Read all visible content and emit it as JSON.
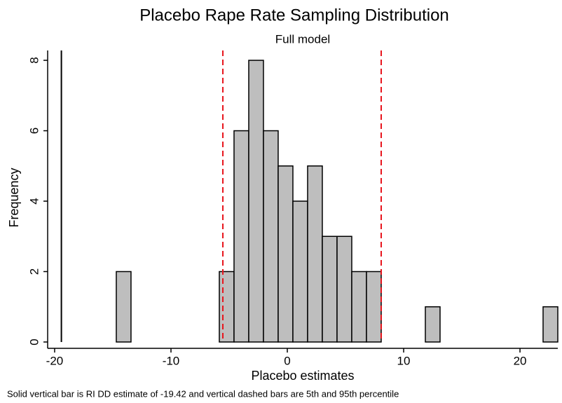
{
  "chart_data": {
    "type": "histogram",
    "title": "Placebo Rape Rate Sampling Distribution",
    "subtitle": "Full model",
    "xlabel": "Placebo estimates",
    "ylabel": "Frequency",
    "note": "Solid vertical bar is RI DD estimate of -19.42 and vertical dashed bars are 5th and 95th percentile",
    "bins": [
      -14.7,
      -13.435,
      -12.17,
      -10.905,
      -9.64,
      -8.375,
      -7.11,
      -5.845,
      -4.58,
      -3.315,
      -2.05,
      -0.785,
      0.48,
      1.745,
      3.01,
      4.275,
      5.54,
      6.805,
      8.07,
      9.335,
      10.6,
      11.865,
      13.13,
      14.395,
      15.66,
      16.925,
      18.19,
      19.455,
      20.72,
      21.985,
      23.25
    ],
    "values": [
      2,
      0,
      0,
      0,
      0,
      0,
      0,
      2,
      6,
      8,
      6,
      5,
      4,
      5,
      3,
      3,
      2,
      2,
      0,
      0,
      0,
      1,
      0,
      0,
      0,
      0,
      0,
      0,
      0,
      1
    ],
    "color": "#bebebe",
    "edgecolor": "#000000",
    "vlines": [
      {
        "value": -19.42,
        "color": "#000000",
        "style": "solid"
      },
      {
        "value": -5.54,
        "color": "#e8141c",
        "style": "dashed"
      },
      {
        "value": 8.07,
        "color": "#e8141c",
        "style": "dashed"
      }
    ],
    "xlim": [
      -20.6,
      23.25
    ],
    "xticks": [
      -20,
      -10,
      0,
      10,
      20
    ],
    "ylim": [
      -0.18,
      8.28
    ],
    "yticks": [
      0,
      2,
      4,
      6,
      8
    ],
    "grid": false
  }
}
